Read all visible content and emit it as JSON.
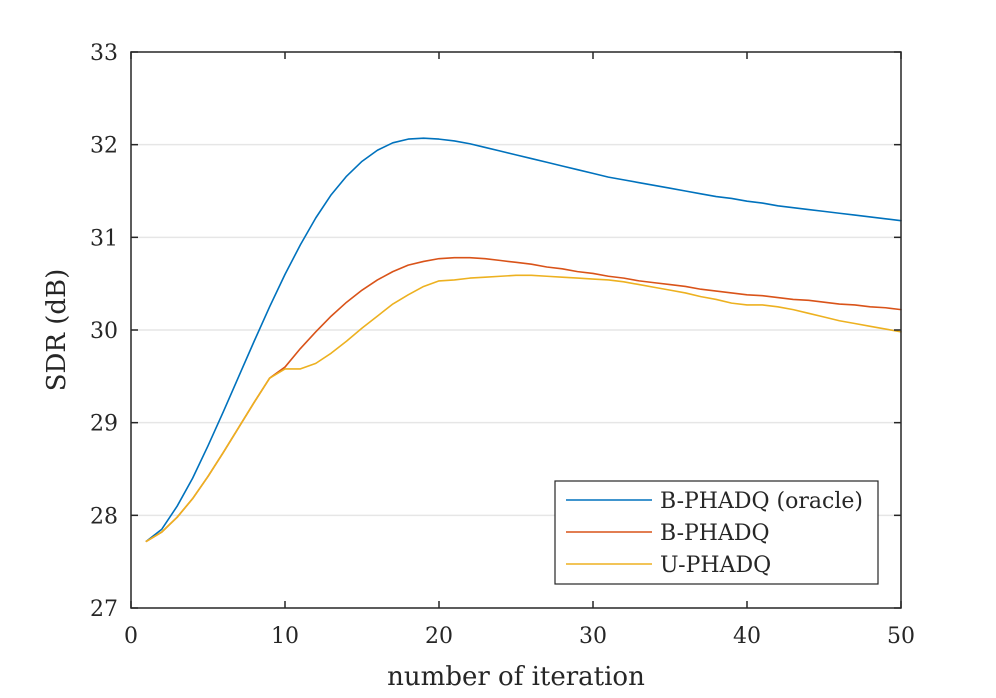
{
  "chart_data": {
    "type": "line",
    "xlabel": "number of iteration",
    "ylabel": "SDR (dB)",
    "xlim": [
      0,
      50
    ],
    "ylim": [
      27,
      33
    ],
    "xticks": [
      0,
      10,
      20,
      30,
      40,
      50
    ],
    "yticks": [
      27,
      28,
      29,
      30,
      31,
      32,
      33
    ],
    "grid": "horizontal",
    "legend_position": "bottom-right",
    "series": [
      {
        "name": "B-PHADQ (oracle)",
        "color": "#0072BD",
        "x": [
          1,
          2,
          3,
          4,
          5,
          6,
          7,
          8,
          9,
          10,
          11,
          12,
          13,
          14,
          15,
          16,
          17,
          18,
          19,
          20,
          21,
          22,
          23,
          24,
          25,
          26,
          27,
          28,
          29,
          30,
          31,
          32,
          33,
          34,
          35,
          36,
          37,
          38,
          39,
          40,
          41,
          42,
          43,
          44,
          45,
          46,
          47,
          48,
          49,
          50
        ],
        "y": [
          27.72,
          27.85,
          28.1,
          28.4,
          28.75,
          29.12,
          29.5,
          29.88,
          30.25,
          30.6,
          30.92,
          31.21,
          31.46,
          31.66,
          31.82,
          31.94,
          32.02,
          32.06,
          32.07,
          32.06,
          32.04,
          32.01,
          31.97,
          31.93,
          31.89,
          31.85,
          31.81,
          31.77,
          31.73,
          31.69,
          31.65,
          31.62,
          31.59,
          31.56,
          31.53,
          31.5,
          31.47,
          31.44,
          31.42,
          31.39,
          31.37,
          31.34,
          31.32,
          31.3,
          31.28,
          31.26,
          31.24,
          31.22,
          31.2,
          31.18
        ]
      },
      {
        "name": "B-PHADQ",
        "color": "#D95319",
        "x": [
          1,
          2,
          3,
          4,
          5,
          6,
          7,
          8,
          9,
          10,
          11,
          12,
          13,
          14,
          15,
          16,
          17,
          18,
          19,
          20,
          21,
          22,
          23,
          24,
          25,
          26,
          27,
          28,
          29,
          30,
          31,
          32,
          33,
          34,
          35,
          36,
          37,
          38,
          39,
          40,
          41,
          42,
          43,
          44,
          45,
          46,
          47,
          48,
          49,
          50
        ],
        "y": [
          27.72,
          27.82,
          27.98,
          28.18,
          28.42,
          28.68,
          28.95,
          29.22,
          29.48,
          29.6,
          29.8,
          29.98,
          30.15,
          30.3,
          30.43,
          30.54,
          30.63,
          30.7,
          30.74,
          30.77,
          30.78,
          30.78,
          30.77,
          30.75,
          30.73,
          30.71,
          30.68,
          30.66,
          30.63,
          30.61,
          30.58,
          30.56,
          30.53,
          30.51,
          30.49,
          30.47,
          30.44,
          30.42,
          30.4,
          30.38,
          30.37,
          30.35,
          30.33,
          30.32,
          30.3,
          30.28,
          30.27,
          30.25,
          30.24,
          30.22
        ]
      },
      {
        "name": "U-PHADQ",
        "color": "#EDB120",
        "x": [
          1,
          2,
          3,
          4,
          5,
          6,
          7,
          8,
          9,
          10,
          11,
          12,
          13,
          14,
          15,
          16,
          17,
          18,
          19,
          20,
          21,
          22,
          23,
          24,
          25,
          26,
          27,
          28,
          29,
          30,
          31,
          32,
          33,
          34,
          35,
          36,
          37,
          38,
          39,
          40,
          41,
          42,
          43,
          44,
          45,
          46,
          47,
          48,
          49,
          50
        ],
        "y": [
          27.72,
          27.82,
          27.98,
          28.18,
          28.42,
          28.68,
          28.95,
          29.22,
          29.48,
          29.58,
          29.58,
          29.64,
          29.75,
          29.88,
          30.02,
          30.15,
          30.28,
          30.38,
          30.47,
          30.53,
          30.54,
          30.56,
          30.57,
          30.58,
          30.59,
          30.59,
          30.58,
          30.57,
          30.56,
          30.55,
          30.54,
          30.52,
          30.49,
          30.46,
          30.43,
          30.4,
          30.36,
          30.33,
          30.29,
          30.27,
          30.27,
          30.25,
          30.22,
          30.18,
          30.14,
          30.1,
          30.07,
          30.04,
          30.01,
          29.98
        ]
      }
    ]
  }
}
